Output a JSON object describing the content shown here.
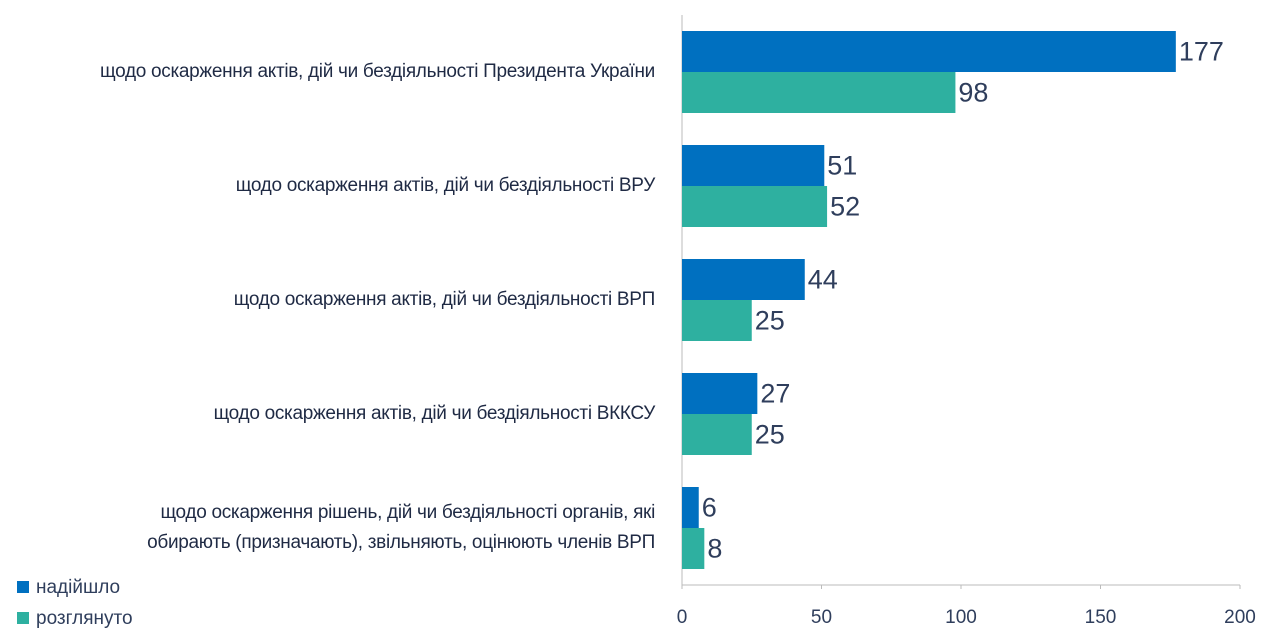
{
  "chart_data": {
    "type": "bar",
    "orientation": "horizontal",
    "categories": [
      "щодо оскарження актів, дій чи бездіяльності Президента України",
      "щодо оскарження актів, дій чи бездіяльності ВРУ",
      "щодо оскарження актів, дій чи бездіяльності ВРП",
      "щодо оскарження актів, дій чи бездіяльності ВККСУ",
      "щодо оскарження рішень, дій чи бездіяльності органів, які\nобирають (призначають), звільняють, оцінюють членів ВРП"
    ],
    "series": [
      {
        "name": "надійшло",
        "color": "#0070c0",
        "values": [
          177,
          51,
          44,
          27,
          6
        ]
      },
      {
        "name": "розглянуто",
        "color": "#2eb0a0",
        "values": [
          98,
          52,
          25,
          25,
          8
        ]
      }
    ],
    "xlim": [
      0,
      200
    ],
    "xticks": [
      0,
      50,
      100,
      150,
      200
    ],
    "legend": "bottom-left"
  }
}
